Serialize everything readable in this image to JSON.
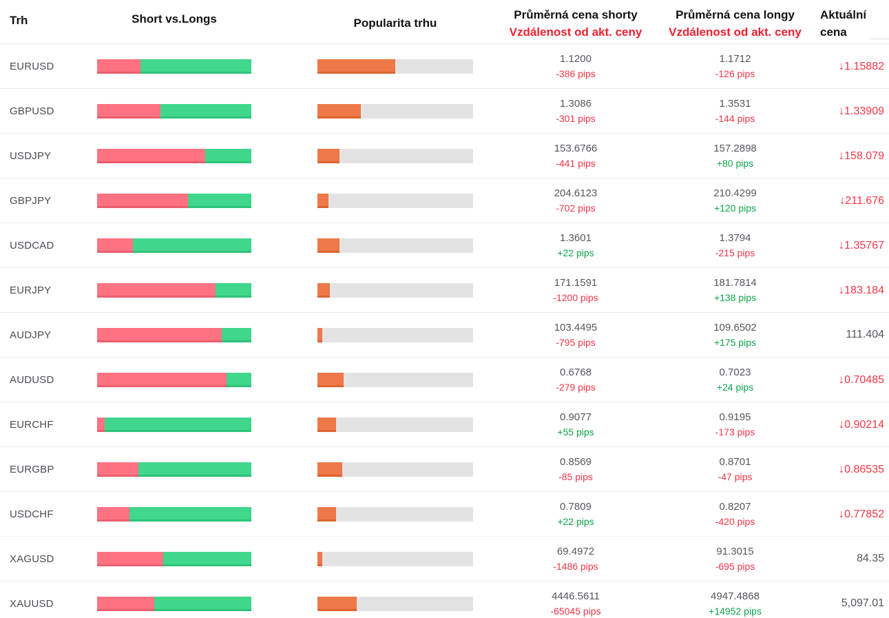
{
  "header": {
    "col_market": "Trh",
    "col_short_long": "Short vs.Longs",
    "col_popularity": "Popularita trhu",
    "col_short_avg_line1": "Průměrná cena shorty",
    "col_short_avg_line2": "Vzdálenost od akt. ceny",
    "col_long_avg_line1": "Průměrná cena longy",
    "col_long_avg_line2": "Vzdálenost od akt. ceny",
    "col_current_line1": "Aktuální",
    "col_current_line2": "cena"
  },
  "icons": {
    "down_arrow": "↓"
  },
  "colors": {
    "bar_short": "#ff7281",
    "bar_short_edge": "#ea5f70",
    "bar_long": "#40d68c",
    "bar_long_edge": "#2fc27b",
    "bar_popularity": "#ee7848",
    "bar_popularity_edge": "#dd6531",
    "bar_track": "#e3e3e3",
    "positive": "#0ca348",
    "negative": "#f43546",
    "header_accent": "#ef212e"
  },
  "rows": [
    {
      "pair": "EURUSD",
      "short_pct": 28,
      "popularity_pct": 50,
      "short_price": "1.1200",
      "short_pips": "-386 pips",
      "long_price": "1.1712",
      "long_pips": "-126 pips",
      "current": "1.15882",
      "current_down": true
    },
    {
      "pair": "GBPUSD",
      "short_pct": 41,
      "popularity_pct": 28,
      "short_price": "1.3086",
      "short_pips": "-301 pips",
      "long_price": "1.3531",
      "long_pips": "-144 pips",
      "current": "1.33909",
      "current_down": true
    },
    {
      "pair": "USDJPY",
      "short_pct": 70,
      "popularity_pct": 14,
      "short_price": "153.6766",
      "short_pips": "-441 pips",
      "long_price": "157.2898",
      "long_pips": "+80 pips",
      "current": "158.079",
      "current_down": true
    },
    {
      "pair": "GBPJPY",
      "short_pct": 59,
      "popularity_pct": 7,
      "short_price": "204.6123",
      "short_pips": "-702 pips",
      "long_price": "210.4299",
      "long_pips": "+120 pips",
      "current": "211.676",
      "current_down": true
    },
    {
      "pair": "USDCAD",
      "short_pct": 23,
      "popularity_pct": 14,
      "short_price": "1.3601",
      "short_pips": "+22 pips",
      "long_price": "1.3794",
      "long_pips": "-215 pips",
      "current": "1.35767",
      "current_down": true
    },
    {
      "pair": "EURJPY",
      "short_pct": 77,
      "popularity_pct": 8,
      "short_price": "171.1591",
      "short_pips": "-1200 pips",
      "long_price": "181.7814",
      "long_pips": "+138 pips",
      "current": "183.184",
      "current_down": true
    },
    {
      "pair": "AUDJPY",
      "short_pct": 81,
      "popularity_pct": 3,
      "short_price": "103.4495",
      "short_pips": "-795 pips",
      "long_price": "109.6502",
      "long_pips": "+175 pips",
      "current": "111.404",
      "current_down": false
    },
    {
      "pair": "AUDUSD",
      "short_pct": 84,
      "popularity_pct": 17,
      "short_price": "0.6768",
      "short_pips": "-279 pips",
      "long_price": "0.7023",
      "long_pips": "+24 pips",
      "current": "0.70485",
      "current_down": true
    },
    {
      "pair": "EURCHF",
      "short_pct": 5,
      "popularity_pct": 12,
      "short_price": "0.9077",
      "short_pips": "+55 pips",
      "long_price": "0.9195",
      "long_pips": "-173 pips",
      "current": "0.90214",
      "current_down": true
    },
    {
      "pair": "EURGBP",
      "short_pct": 27,
      "popularity_pct": 16,
      "short_price": "0.8569",
      "short_pips": "-85 pips",
      "long_price": "0.8701",
      "long_pips": "-47 pips",
      "current": "0.86535",
      "current_down": true
    },
    {
      "pair": "USDCHF",
      "short_pct": 21,
      "popularity_pct": 12,
      "short_price": "0.7809",
      "short_pips": "+22 pips",
      "long_price": "0.8207",
      "long_pips": "-420 pips",
      "current": "0.77852",
      "current_down": true
    },
    {
      "pair": "XAGUSD",
      "short_pct": 43,
      "popularity_pct": 3,
      "short_price": "69.4972",
      "short_pips": "-1486 pips",
      "long_price": "91.3015",
      "long_pips": "-695 pips",
      "current": "84.35",
      "current_down": false
    },
    {
      "pair": "XAUUSD",
      "short_pct": 37,
      "popularity_pct": 25,
      "short_price": "4446.5611",
      "short_pips": "-65045 pips",
      "long_price": "4947.4868",
      "long_pips": "+14952 pips",
      "current": "5,097.01",
      "current_down": false
    }
  ]
}
